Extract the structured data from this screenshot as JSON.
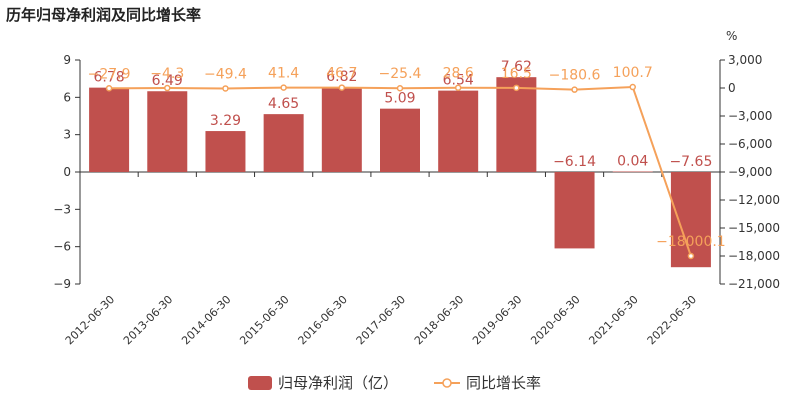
{
  "title": "历年归母净利润及同比增长率",
  "chart_data": {
    "type": "bar",
    "categories": [
      "2012-06-30",
      "2013-06-30",
      "2014-06-30",
      "2015-06-30",
      "2016-06-30",
      "2017-06-30",
      "2018-06-30",
      "2019-06-30",
      "2020-06-30",
      "2021-06-30",
      "2022-06-30"
    ],
    "series": [
      {
        "name": "归母净利润（亿）",
        "type": "bar",
        "axis": "left",
        "color": "#c0504d",
        "values": [
          6.78,
          6.49,
          3.29,
          4.65,
          6.82,
          5.09,
          6.54,
          7.62,
          -6.14,
          0.04,
          -7.65
        ],
        "labels": [
          "6.78",
          "6.49",
          "3.29",
          "4.65",
          "6.82",
          "5.09",
          "6.54",
          "7.62",
          "−6.14",
          "0.04",
          "−7.65"
        ]
      },
      {
        "name": "同比增长率",
        "type": "line",
        "axis": "right",
        "color": "#f5a15a",
        "values": [
          -27.9,
          -4.3,
          -49.4,
          41.4,
          46.7,
          -25.4,
          28.6,
          16.5,
          -180.6,
          100.7,
          -18000.1
        ],
        "labels": [
          "−27.9",
          "−4.3",
          "−49.4",
          "41.4",
          "46.7",
          "−25.4",
          "28.6",
          "16.5",
          "−180.6",
          "100.7",
          "−18000.1"
        ]
      }
    ],
    "left_axis": {
      "ylim": [
        -9,
        9
      ],
      "ticks": [
        9,
        6,
        3,
        0,
        -3,
        -6,
        -9
      ],
      "tick_labels": [
        "9",
        "6",
        "3",
        "0",
        "−3",
        "−6",
        "−9"
      ]
    },
    "right_axis": {
      "unit": "%",
      "ylim": [
        -21000,
        3000
      ],
      "ticks": [
        3000,
        0,
        -3000,
        -6000,
        -9000,
        -12000,
        -15000,
        -18000,
        -21000
      ],
      "tick_labels": [
        "3,000",
        "0",
        "−3,000",
        "−6,000",
        "−9,000",
        "−12,000",
        "−15,000",
        "−18,000",
        "−21,000"
      ]
    },
    "legend": {
      "position": "bottom",
      "items": [
        {
          "label": "归母净利润（亿）",
          "color": "#c0504d",
          "kind": "bar"
        },
        {
          "label": "同比增长率",
          "color": "#f5a15a",
          "kind": "line"
        }
      ]
    }
  }
}
